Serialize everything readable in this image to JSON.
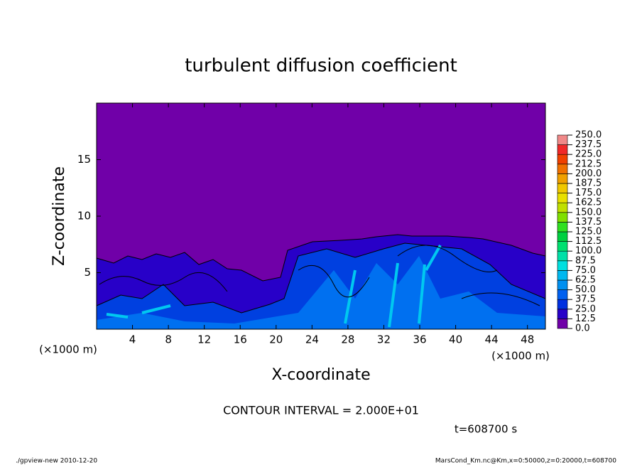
{
  "chart_data": {
    "type": "contour",
    "title": "turbulent diffusion coefficient",
    "x_label": "X-coordinate",
    "y_label": "Z-coordinate",
    "x_unit": "(×1000 m)",
    "y_unit": "(×1000 m)",
    "xlim": [
      0,
      50
    ],
    "xticks": [
      4,
      8,
      12,
      16,
      20,
      24,
      28,
      32,
      36,
      40,
      44,
      48
    ],
    "ylim": [
      0,
      20
    ],
    "yticks": [
      5,
      10,
      15
    ],
    "colorbar": {
      "levels": [
        {
          "value": 0,
          "label": "0.0"
        },
        {
          "value": 12.5,
          "label": "12.5"
        },
        {
          "value": 25,
          "label": "25.0"
        },
        {
          "value": 37.5,
          "label": "37.5"
        },
        {
          "value": 50,
          "label": "50.0"
        },
        {
          "value": 62.5,
          "label": "62.5"
        },
        {
          "value": 75,
          "label": "75.0"
        },
        {
          "value": 87.5,
          "label": "87.5"
        },
        {
          "value": 100,
          "label": "100.0"
        },
        {
          "value": 112.5,
          "label": "112.5"
        },
        {
          "value": 125,
          "label": "125.0"
        },
        {
          "value": 137.5,
          "label": "137.5"
        },
        {
          "value": 150,
          "label": "150.0"
        },
        {
          "value": 162.5,
          "label": "162.5"
        },
        {
          "value": 175,
          "label": "175.0"
        },
        {
          "value": 187.5,
          "label": "187.5"
        },
        {
          "value": 200,
          "label": "200.0"
        },
        {
          "value": 212.5,
          "label": "212.5"
        },
        {
          "value": 225,
          "label": "225.0"
        },
        {
          "value": 237.5,
          "label": "237.5"
        },
        {
          "value": 250,
          "label": "250.0"
        }
      ],
      "colors": [
        "#7000a8",
        "#2800c8",
        "#0030e0",
        "#0060f0",
        "#0090f0",
        "#00b8f0",
        "#00e0e0",
        "#00e0a8",
        "#00e070",
        "#00d040",
        "#30e020",
        "#80e000",
        "#c0e000",
        "#e8e000",
        "#f0c800",
        "#f0a000",
        "#f07000",
        "#f04000",
        "#f02828",
        "#f08888"
      ]
    },
    "contour_interval": "CONTOUR INTERVAL = 2.000E+01",
    "time_label": "t=608700 s",
    "footer_left": "./gpview-new   2010-12-20",
    "footer_right": "MarsCond_Km.nc@Km,x=0:50000,z=0:20000,t=608700"
  }
}
